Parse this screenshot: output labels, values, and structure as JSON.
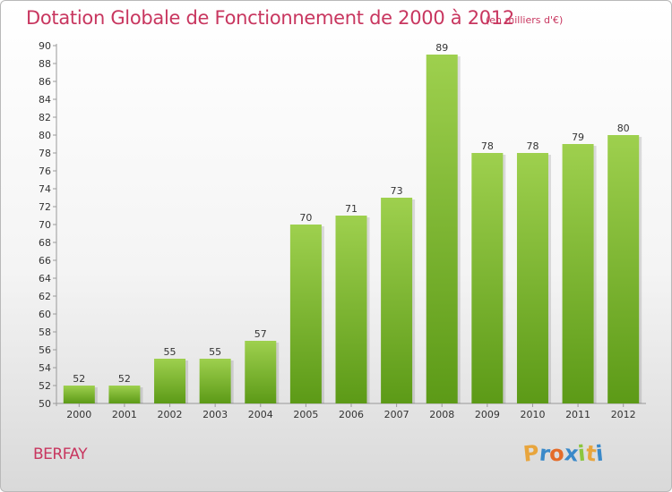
{
  "title": "Dotation Globale de Fonctionnement de 2000 à 2012",
  "subtitle": "(en milliers d'€)",
  "place": "BERFAY",
  "logo": {
    "letters": [
      "P",
      "r",
      "o",
      "x",
      "i",
      "t",
      "i"
    ],
    "colors": [
      "#e8a53d",
      "#3a89c9",
      "#e46c2a",
      "#3a89c9",
      "#8cc63f",
      "#e8a53d",
      "#3a89c9"
    ]
  },
  "chart_data": {
    "type": "bar",
    "title": "Dotation Globale de Fonctionnement de 2000 à 2012",
    "subtitle": "(en milliers d'€)",
    "xlabel": "",
    "ylabel": "",
    "categories": [
      "2000",
      "2001",
      "2002",
      "2003",
      "2004",
      "2005",
      "2006",
      "2007",
      "2008",
      "2009",
      "2010",
      "2011",
      "2012"
    ],
    "values": [
      52,
      52,
      55,
      55,
      57,
      70,
      71,
      73,
      89,
      78,
      78,
      79,
      80
    ],
    "ylim": [
      50,
      90
    ],
    "yticks": [
      50,
      52,
      54,
      56,
      58,
      60,
      62,
      64,
      66,
      68,
      70,
      72,
      74,
      76,
      78,
      80,
      82,
      84,
      86,
      88,
      90
    ],
    "grid": false,
    "colors": {
      "bar_top": "#9ed04e",
      "bar_bottom": "#5c9a17",
      "text": "#333333",
      "accent": "#c8365f"
    }
  }
}
